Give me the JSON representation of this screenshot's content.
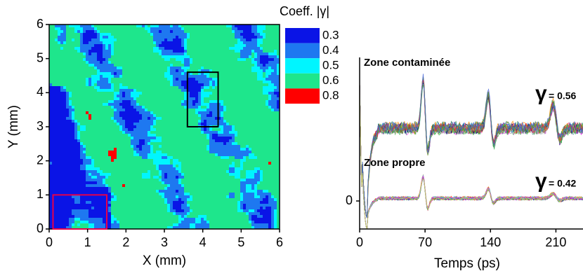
{
  "chart_data": [
    {
      "type": "contour",
      "xlabel": "X (mm)",
      "ylabel": "Y (mm)",
      "xlim": [
        0,
        6
      ],
      "ylim": [
        0,
        6
      ],
      "xticks": [
        0,
        1,
        2,
        3,
        4,
        5,
        6
      ],
      "yticks": [
        0,
        1,
        2,
        3,
        4,
        5,
        6
      ],
      "colorbar": {
        "title": "Coeff. |γ|",
        "levels": [
          0.3,
          0.4,
          0.5,
          0.6,
          0.8
        ],
        "colors": [
          "#0a14e6",
          "#1e78f0",
          "#00f5ff",
          "#1ee68c",
          "#ff0000"
        ]
      },
      "regions": [
        {
          "color": "#000000",
          "xlim": [
            3.6,
            4.4
          ],
          "ylim": [
            3.0,
            4.6
          ]
        },
        {
          "color": "#e6004b",
          "xlim": [
            0.1,
            1.5
          ],
          "ylim": [
            0.0,
            1.0
          ]
        }
      ]
    },
    {
      "type": "waveform",
      "xlabel": "Temps (ps)",
      "xlim": [
        0,
        245
      ],
      "xticks": [
        0,
        70,
        140,
        210
      ],
      "ylim": [
        -1,
        5
      ],
      "yticks": [
        0
      ],
      "annotations": [
        {
          "text": "Zone contaminée",
          "color": "#000000"
        },
        {
          "text": "Zone propre",
          "color": "#e01020"
        }
      ],
      "gamma_labels": [
        {
          "symbol": "γ",
          "label": "= 0.56",
          "color": "#000000"
        },
        {
          "symbol": "γ",
          "label": "= 0.42",
          "color": "#e01020"
        }
      ]
    }
  ]
}
